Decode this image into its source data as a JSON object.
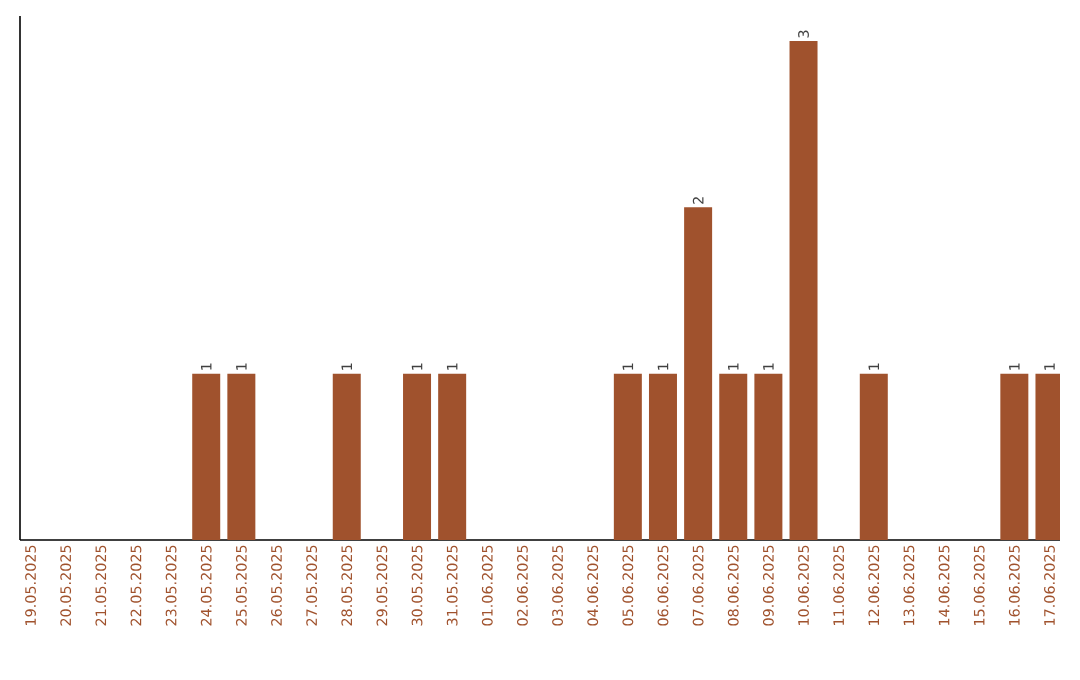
{
  "chart_data": {
    "type": "bar",
    "categories": [
      "19.05.2025",
      "20.05.2025",
      "21.05.2025",
      "22.05.2025",
      "23.05.2025",
      "24.05.2025",
      "25.05.2025",
      "26.05.2025",
      "27.05.2025",
      "28.05.2025",
      "29.05.2025",
      "30.05.2025",
      "31.05.2025",
      "01.06.2025",
      "02.06.2025",
      "03.06.2025",
      "04.06.2025",
      "05.06.2025",
      "06.06.2025",
      "07.06.2025",
      "08.06.2025",
      "09.06.2025",
      "10.06.2025",
      "11.06.2025",
      "12.06.2025",
      "13.06.2025",
      "14.06.2025",
      "15.06.2025",
      "16.06.2025",
      "17.06.2025"
    ],
    "values": [
      0,
      0,
      0,
      0,
      0,
      1,
      1,
      0,
      0,
      1,
      0,
      1,
      1,
      0,
      0,
      0,
      0,
      1,
      1,
      2,
      1,
      1,
      3,
      0,
      1,
      0,
      0,
      0,
      1,
      1
    ],
    "value_labels": [
      null,
      null,
      null,
      null,
      null,
      "1",
      "1",
      null,
      null,
      "1",
      null,
      "1",
      "1",
      null,
      null,
      null,
      null,
      "1",
      "1",
      "2",
      "1",
      "1",
      "3",
      null,
      "1",
      null,
      null,
      null,
      "1",
      "1"
    ],
    "color": "#a0522d",
    "tick_labels": "x"
  }
}
